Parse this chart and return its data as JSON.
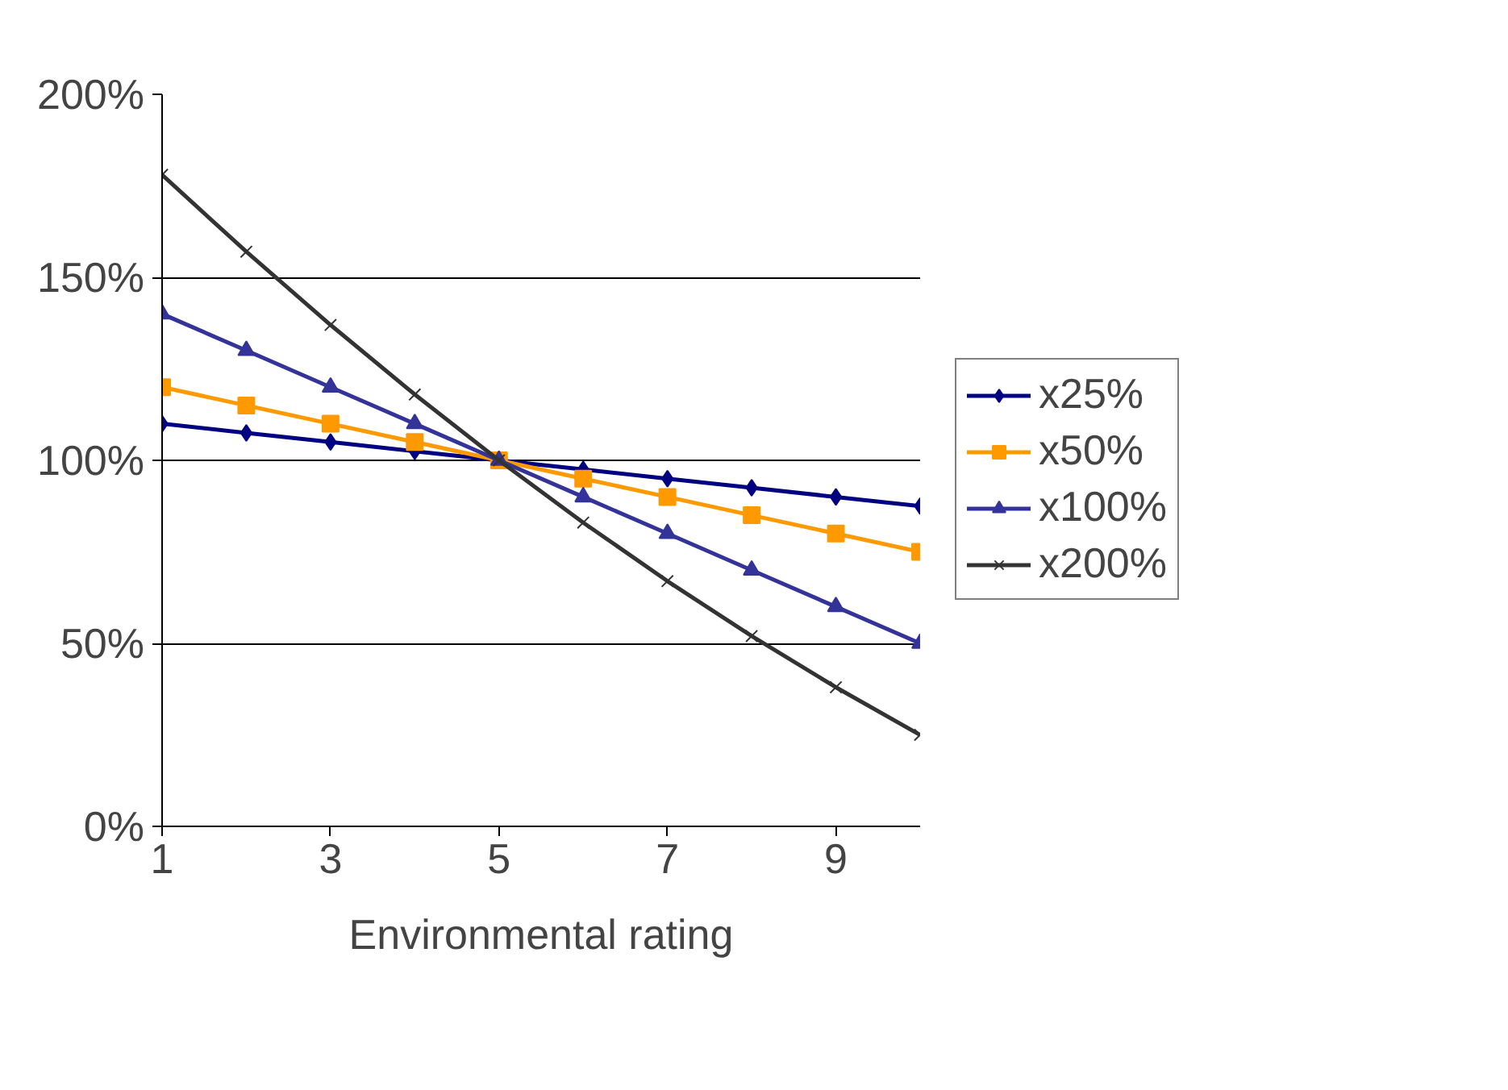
{
  "chart_data": {
    "type": "line",
    "xlabel": "Environmental rating",
    "x": [
      1,
      2,
      3,
      4,
      5,
      6,
      7,
      8,
      9,
      10
    ],
    "series": [
      {
        "name": "x25%",
        "color": "#000080",
        "marker": "diamond",
        "values": [
          110,
          107.5,
          105,
          102.5,
          100,
          97.5,
          95,
          92.5,
          90,
          87.5
        ]
      },
      {
        "name": "x50%",
        "color": "#ff9900",
        "marker": "square",
        "values": [
          120,
          115,
          110,
          105,
          100,
          95,
          90,
          85,
          80,
          75
        ]
      },
      {
        "name": "x100%",
        "color": "#333399",
        "marker": "triangle",
        "values": [
          140,
          130,
          120,
          110,
          100,
          90,
          80,
          70,
          60,
          50
        ]
      },
      {
        "name": "x200%",
        "color": "#333333",
        "marker": "cross",
        "values": [
          178,
          157,
          137,
          118,
          100,
          83,
          67,
          52,
          38,
          25
        ]
      }
    ],
    "xlim": [
      1,
      10
    ],
    "xticks": [
      1,
      3,
      5,
      7,
      9
    ],
    "ylim": [
      0,
      200
    ],
    "yticks": [
      {
        "value": 0,
        "label": "0%"
      },
      {
        "value": 50,
        "label": "50%"
      },
      {
        "value": 100,
        "label": "100%"
      },
      {
        "value": 150,
        "label": "150%"
      },
      {
        "value": 200,
        "label": "200%"
      }
    ],
    "grid": "y",
    "legend": "right",
    "line_style": "solid"
  }
}
